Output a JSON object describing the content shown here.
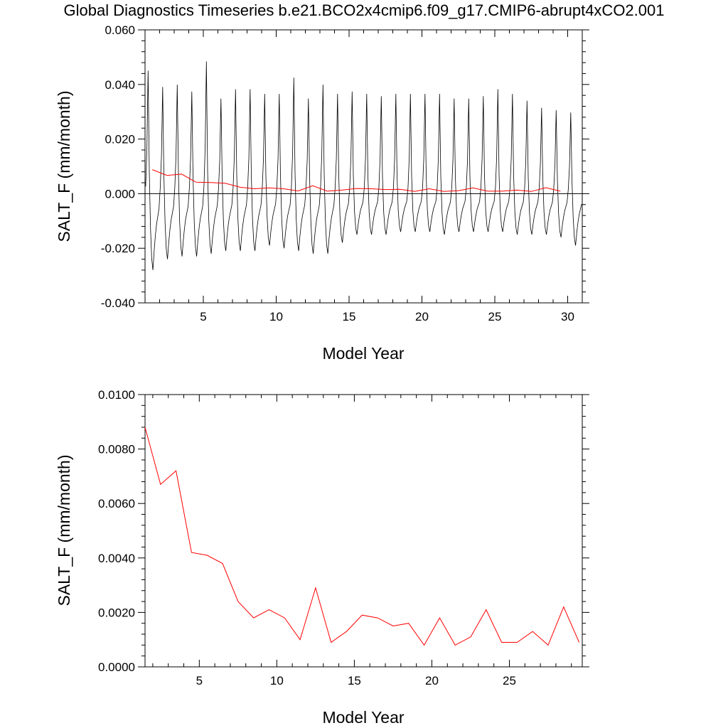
{
  "title": "Global Diagnostics Timeseries b.e21.BCO2x4cmip6.f09_g17.CMIP6-abrupt4xCO2.001",
  "colors": {
    "monthly": "#000000",
    "annual": "#ff0000",
    "zero_line": "#000000"
  },
  "chart_data": [
    {
      "type": "line",
      "xlabel": "Model Year",
      "ylabel": "SALT_F (mm/month)",
      "xlim": [
        1,
        31
      ],
      "ylim": [
        -0.04,
        0.06
      ],
      "x_ticks": [
        5,
        10,
        15,
        20,
        25,
        30
      ],
      "x_tick_labels": [
        "5",
        "10",
        "15",
        "20",
        "25",
        "30"
      ],
      "y_ticks": [
        -0.04,
        -0.02,
        0.0,
        0.02,
        0.04,
        0.06
      ],
      "y_tick_labels": [
        "-0.040",
        "-0.020",
        "0.000",
        "0.020",
        "0.040",
        "0.060"
      ],
      "reference_line_y": 0.0,
      "monthly_yearly_extrema": [
        {
          "year": 1,
          "max": 0.053,
          "min": -0.028
        },
        {
          "year": 2,
          "max": 0.046,
          "min": -0.024
        },
        {
          "year": 3,
          "max": 0.047,
          "min": -0.023
        },
        {
          "year": 4,
          "max": 0.044,
          "min": -0.023
        },
        {
          "year": 5,
          "max": 0.057,
          "min": -0.022
        },
        {
          "year": 6,
          "max": 0.041,
          "min": -0.021
        },
        {
          "year": 7,
          "max": 0.045,
          "min": -0.021
        },
        {
          "year": 8,
          "max": 0.045,
          "min": -0.021
        },
        {
          "year": 9,
          "max": 0.043,
          "min": -0.019
        },
        {
          "year": 10,
          "max": 0.043,
          "min": -0.02
        },
        {
          "year": 11,
          "max": 0.05,
          "min": -0.021
        },
        {
          "year": 12,
          "max": 0.041,
          "min": -0.022
        },
        {
          "year": 13,
          "max": 0.047,
          "min": -0.022
        },
        {
          "year": 14,
          "max": 0.043,
          "min": -0.018
        },
        {
          "year": 15,
          "max": 0.044,
          "min": -0.015
        },
        {
          "year": 16,
          "max": 0.043,
          "min": -0.015
        },
        {
          "year": 17,
          "max": 0.042,
          "min": -0.015
        },
        {
          "year": 18,
          "max": 0.043,
          "min": -0.014
        },
        {
          "year": 19,
          "max": 0.043,
          "min": -0.014
        },
        {
          "year": 20,
          "max": 0.043,
          "min": -0.014
        },
        {
          "year": 21,
          "max": 0.043,
          "min": -0.015
        },
        {
          "year": 22,
          "max": 0.041,
          "min": -0.014
        },
        {
          "year": 23,
          "max": 0.041,
          "min": -0.014
        },
        {
          "year": 24,
          "max": 0.042,
          "min": -0.014
        },
        {
          "year": 25,
          "max": 0.045,
          "min": -0.014
        },
        {
          "year": 26,
          "max": 0.043,
          "min": -0.015
        },
        {
          "year": 27,
          "max": 0.04,
          "min": -0.015
        },
        {
          "year": 28,
          "max": 0.037,
          "min": -0.015
        },
        {
          "year": 29,
          "max": 0.036,
          "min": -0.016
        },
        {
          "year": 30,
          "max": 0.035,
          "min": -0.019
        }
      ],
      "series": [
        {
          "x": [
            1.5,
            2.5,
            3.5,
            4.5,
            5.5,
            6.5,
            7.5,
            8.5,
            9.5,
            10.5,
            11.5,
            12.5,
            13.5,
            14.5,
            15.5,
            16.5,
            17.5,
            18.5,
            19.5,
            20.5,
            21.5,
            22.5,
            23.5,
            24.5,
            25.5,
            26.5,
            27.5,
            28.5,
            29.5
          ],
          "values": [
            0.0088,
            0.0067,
            0.0072,
            0.0042,
            0.0041,
            0.0038,
            0.0024,
            0.0018,
            0.0021,
            0.0018,
            0.001,
            0.0029,
            0.0009,
            0.0013,
            0.0019,
            0.0018,
            0.0015,
            0.0016,
            0.0008,
            0.0018,
            0.0008,
            0.0011,
            0.0021,
            0.0009,
            0.0009,
            0.0013,
            0.0008,
            0.0022,
            0.0009
          ]
        }
      ]
    },
    {
      "type": "line",
      "xlabel": "Model Year",
      "ylabel": "SALT_F (mm/month)",
      "xlim": [
        1.5,
        29.7
      ],
      "ylim": [
        0.0,
        0.01
      ],
      "x_ticks": [
        5,
        10,
        15,
        20,
        25
      ],
      "x_tick_labels": [
        "5",
        "10",
        "15",
        "20",
        "25"
      ],
      "y_ticks": [
        0.0,
        0.002,
        0.004,
        0.006,
        0.008,
        0.01
      ],
      "y_tick_labels": [
        "0.0000",
        "0.0020",
        "0.0040",
        "0.0060",
        "0.0080",
        "0.0100"
      ],
      "series": [
        {
          "x": [
            1.5,
            2.5,
            3.5,
            4.5,
            5.5,
            6.5,
            7.5,
            8.5,
            9.5,
            10.5,
            11.5,
            12.5,
            13.5,
            14.5,
            15.5,
            16.5,
            17.5,
            18.5,
            19.5,
            20.5,
            21.5,
            22.5,
            23.5,
            24.5,
            25.5,
            26.5,
            27.5,
            28.5,
            29.5
          ],
          "values": [
            0.0088,
            0.0067,
            0.0072,
            0.0042,
            0.0041,
            0.0038,
            0.0024,
            0.0018,
            0.0021,
            0.0018,
            0.001,
            0.0029,
            0.0009,
            0.0013,
            0.0019,
            0.0018,
            0.0015,
            0.0016,
            0.0008,
            0.0018,
            0.0008,
            0.0011,
            0.0021,
            0.0009,
            0.0009,
            0.0013,
            0.0008,
            0.0022,
            0.0009
          ]
        }
      ]
    }
  ]
}
